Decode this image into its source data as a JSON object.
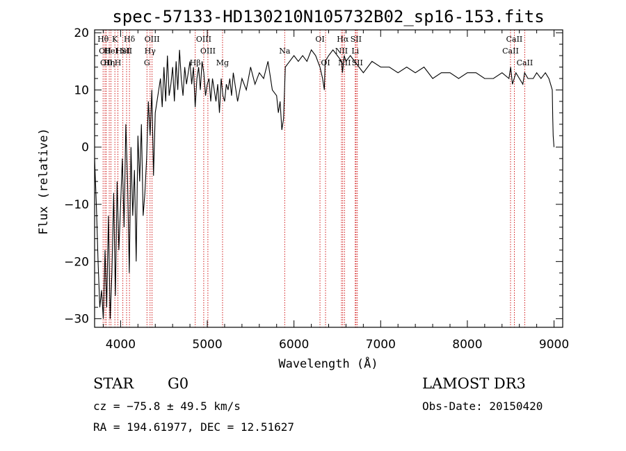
{
  "chart_data": {
    "type": "line",
    "title": "spec-57133-HD130210N105732B02_sp16-153.fits",
    "xlabel": "Wavelength (Å)",
    "ylabel": "Flux (relative)",
    "xlim": [
      3700,
      9100
    ],
    "ylim": [
      -31.5,
      20.5
    ],
    "xticks": [
      4000,
      5000,
      6000,
      7000,
      8000,
      9000
    ],
    "yticks": [
      -30,
      -20,
      -10,
      0,
      10,
      20
    ],
    "xtick_labels": [
      "4000",
      "5000",
      "6000",
      "7000",
      "8000",
      "9000"
    ],
    "ytick_labels": [
      "−30",
      "−20",
      "−10",
      "0",
      "10",
      "20"
    ],
    "grid": false,
    "series": [
      {
        "x": [
          3700,
          3720,
          3740,
          3760,
          3780,
          3800,
          3820,
          3840,
          3860,
          3880,
          3900,
          3920,
          3940,
          3960,
          3980,
          4000,
          4020,
          4040,
          4060,
          4080,
          4100,
          4120,
          4140,
          4160,
          4180,
          4200,
          4220,
          4240,
          4260,
          4280,
          4300,
          4320,
          4340,
          4360,
          4380,
          4400,
          4420,
          4440,
          4460,
          4480,
          4500,
          4520,
          4540,
          4560,
          4580,
          4600,
          4620,
          4640,
          4660,
          4680,
          4700,
          4720,
          4740,
          4760,
          4780,
          4800,
          4820,
          4840,
          4860,
          4880,
          4900,
          4920,
          4940,
          4960,
          4980,
          5000,
          5020,
          5040,
          5060,
          5080,
          5100,
          5120,
          5140,
          5160,
          5180,
          5200,
          5220,
          5240,
          5260,
          5280,
          5300,
          5350,
          5400,
          5450,
          5500,
          5550,
          5600,
          5650,
          5700,
          5750,
          5800,
          5820,
          5840,
          5860,
          5880,
          5900,
          5950,
          6000,
          6050,
          6100,
          6150,
          6200,
          6250,
          6300,
          6330,
          6350,
          6360,
          6400,
          6450,
          6500,
          6550,
          6560,
          6580,
          6600,
          6650,
          6700,
          6750,
          6800,
          6900,
          7000,
          7100,
          7200,
          7300,
          7400,
          7500,
          7600,
          7700,
          7800,
          7900,
          8000,
          8100,
          8200,
          8300,
          8400,
          8480,
          8500,
          8520,
          8540,
          8560,
          8600,
          8640,
          8660,
          8700,
          8760,
          8800,
          8850,
          8900,
          8940,
          8960,
          8980,
          8985,
          8990,
          8995,
          9000
        ],
        "y": [
          -2,
          -10,
          -20,
          -28,
          -25,
          -30,
          -18,
          -28,
          -12,
          -30,
          -22,
          -8,
          -26,
          -6,
          -18,
          -10,
          -2,
          -14,
          4,
          -6,
          -22,
          0,
          -12,
          -4,
          -20,
          2,
          -6,
          4,
          -12,
          -8,
          -2,
          8,
          2,
          10,
          -5,
          6,
          8,
          10,
          12,
          7,
          14,
          8,
          16,
          9,
          11,
          14,
          8,
          15,
          10,
          17,
          12,
          9,
          14,
          11,
          13,
          15,
          11,
          14,
          7,
          12,
          14,
          10,
          15,
          13,
          9,
          11,
          12,
          8,
          12,
          10,
          8,
          11,
          6,
          12,
          9,
          8,
          11,
          10,
          12,
          9,
          13,
          8,
          12,
          10,
          14,
          11,
          13,
          12,
          15,
          10,
          9,
          6,
          8,
          3,
          5,
          14,
          15,
          16,
          15,
          16,
          15,
          17,
          16,
          14,
          12,
          10,
          15,
          16,
          17,
          16,
          15,
          13,
          16,
          15,
          16,
          15,
          14,
          13,
          15,
          14,
          14,
          13,
          14,
          13,
          14,
          12,
          13,
          13,
          12,
          13,
          13,
          12,
          12,
          13,
          12,
          14,
          11,
          12,
          13,
          12,
          11,
          13,
          12,
          12,
          13,
          12,
          13,
          12,
          11,
          10,
          5,
          2,
          1,
          0
        ]
      }
    ],
    "line_markers": [
      {
        "w": 3798,
        "label": "Hθ",
        "row": 0
      },
      {
        "w": 3820,
        "label": "OII",
        "row": 1
      },
      {
        "w": 3835,
        "label": "OII",
        "row": 2
      },
      {
        "w": 3869,
        "label": "Hη",
        "row": 2
      },
      {
        "w": 3889,
        "label": "HeI",
        "row": 1
      },
      {
        "w": 3934,
        "label": "K",
        "row": 0
      },
      {
        "w": 3969,
        "label": "H",
        "row": 2
      },
      {
        "w": 4026,
        "label": "HeI",
        "row": 1
      },
      {
        "w": 4069,
        "label": "SII",
        "row": 1
      },
      {
        "w": 4102,
        "label": "Hδ",
        "row": 0
      },
      {
        "w": 4304,
        "label": "G",
        "row": 2
      },
      {
        "w": 4340,
        "label": "Hγ",
        "row": 1
      },
      {
        "w": 4363,
        "label": "OIII",
        "row": 0
      },
      {
        "w": 4861,
        "label": "Hβ",
        "row": 2
      },
      {
        "w": 4959,
        "label": "OIII",
        "row": 0
      },
      {
        "w": 5007,
        "label": "OIII",
        "row": 1
      },
      {
        "w": 5176,
        "label": "Mg",
        "row": 2
      },
      {
        "w": 5893,
        "label": "Na",
        "row": 1
      },
      {
        "w": 6300,
        "label": "OI",
        "row": 0
      },
      {
        "w": 6364,
        "label": "OI",
        "row": 2
      },
      {
        "w": 6548,
        "label": "NII",
        "row": 1
      },
      {
        "w": 6563,
        "label": "Hα",
        "row": 0
      },
      {
        "w": 6583,
        "label": "NII",
        "row": 2
      },
      {
        "w": 6707,
        "label": "Li",
        "row": 1
      },
      {
        "w": 6716,
        "label": "SII",
        "row": 0
      },
      {
        "w": 6731,
        "label": "SII",
        "row": 2
      },
      {
        "w": 8498,
        "label": "CaII",
        "row": 1
      },
      {
        "w": 8542,
        "label": "CaII",
        "row": 0
      },
      {
        "w": 8662,
        "label": "CaII",
        "row": 2
      }
    ]
  },
  "info": {
    "class_label": "STAR",
    "subclass_label": "G0",
    "survey_label": "LAMOST DR3",
    "cz_text": "cz = −75.8 ± 49.5 km/s",
    "obsdate_text": "Obs-Date: 20150420",
    "radec_text": "RA = 194.61977, DEC =  12.51627"
  },
  "colors": {
    "spectrum": "#000000",
    "marker_lines": "#cc0000",
    "axes": "#000000",
    "background": "#ffffff"
  }
}
